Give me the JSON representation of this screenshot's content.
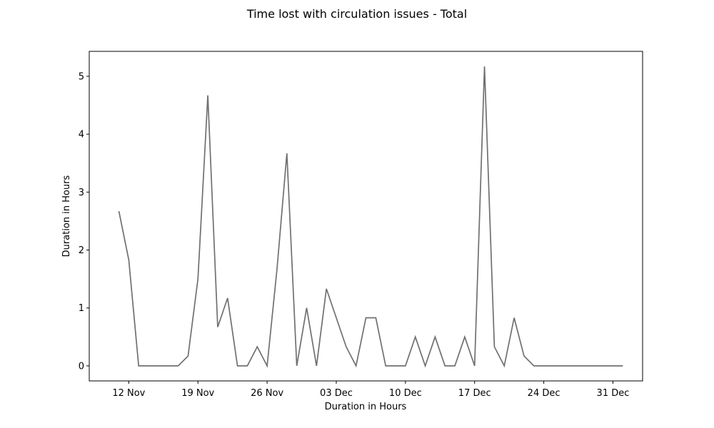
{
  "chart_data": {
    "type": "line",
    "title": "Time lost with circulation issues - Total",
    "xlabel": "Duration in Hours",
    "ylabel": "Duration in Hours",
    "x_tick_labels": [
      {
        "date": "2018-11-12",
        "label": "12 Nov"
      },
      {
        "date": "2018-11-19",
        "label": "19 Nov"
      },
      {
        "date": "2018-11-26",
        "label": "26 Nov"
      },
      {
        "date": "2018-12-03",
        "label": "03 Dec"
      },
      {
        "date": "2018-12-10",
        "label": "10 Dec"
      },
      {
        "date": "2018-12-17",
        "label": "17 Dec"
      },
      {
        "date": "2018-12-24",
        "label": "24 Dec"
      },
      {
        "date": "2018-12-31",
        "label": "31 Dec"
      }
    ],
    "y_ticks": [
      0,
      1,
      2,
      3,
      4,
      5
    ],
    "xlim": [
      "2018-11-08",
      "2019-01-03"
    ],
    "ylim": [
      -0.26,
      5.43
    ],
    "grid": false,
    "line_color": "#707070",
    "series": [
      {
        "x": [
          "2018-11-11",
          "2018-11-12",
          "2018-11-13",
          "2018-11-14",
          "2018-11-15",
          "2018-11-16",
          "2018-11-17",
          "2018-11-18",
          "2018-11-19",
          "2018-11-20",
          "2018-11-21",
          "2018-11-22",
          "2018-11-23",
          "2018-11-24",
          "2018-11-25",
          "2018-11-26",
          "2018-11-27",
          "2018-11-28",
          "2018-11-29",
          "2018-11-30",
          "2018-12-01",
          "2018-12-02",
          "2018-12-03",
          "2018-12-04",
          "2018-12-05",
          "2018-12-06",
          "2018-12-07",
          "2018-12-08",
          "2018-12-09",
          "2018-12-10",
          "2018-12-11",
          "2018-12-12",
          "2018-12-13",
          "2018-12-14",
          "2018-12-15",
          "2018-12-16",
          "2018-12-17",
          "2018-12-18",
          "2018-12-19",
          "2018-12-20",
          "2018-12-21",
          "2018-12-22",
          "2018-12-23",
          "2018-12-24",
          "2018-12-25",
          "2018-12-26",
          "2018-12-27",
          "2018-12-28",
          "2018-12-29",
          "2018-12-30",
          "2018-12-31",
          "2019-01-01"
        ],
        "values": [
          2.67,
          1.83,
          0,
          0,
          0,
          0,
          0,
          0.17,
          1.5,
          4.67,
          0.67,
          1.17,
          0,
          0,
          0.33,
          0,
          1.67,
          3.67,
          0,
          1,
          0,
          1.33,
          0.83,
          0.33,
          0,
          0.83,
          0.83,
          0,
          0,
          0,
          0.5,
          0,
          0.5,
          0,
          0,
          0.5,
          0,
          5.17,
          0.33,
          0,
          0.83,
          0.17,
          0,
          0,
          0,
          0,
          0,
          0,
          0,
          0,
          0,
          0
        ]
      }
    ]
  }
}
